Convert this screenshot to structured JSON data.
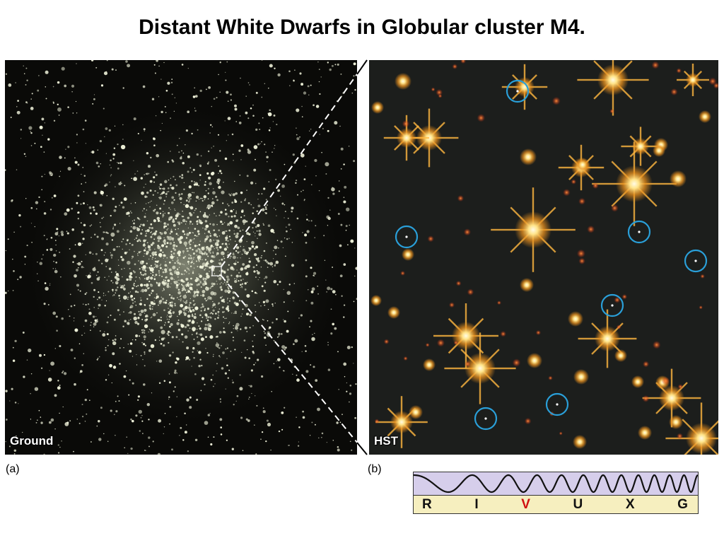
{
  "title": "Distant White Dwarfs in Globular cluster M4.",
  "panel_a": {
    "label": "Ground",
    "caption": "(a)"
  },
  "panel_b": {
    "label": "HST",
    "caption": "(b)"
  },
  "spectrum": {
    "bands": [
      "R",
      "I",
      "V",
      "U",
      "X",
      "G"
    ],
    "highlighted_band": "V",
    "highlight_color": "#d01010"
  },
  "colors": {
    "circle_marker": "#2a9fd8",
    "ground_star": "#f2f5dc",
    "hst_star_core": "#fff6c8",
    "hst_star_glow": "#e88a1c"
  }
}
